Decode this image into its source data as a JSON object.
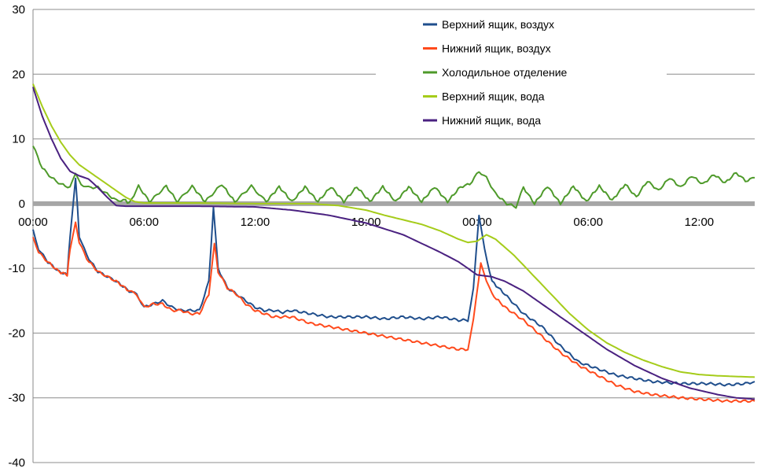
{
  "chart_data": {
    "type": "line",
    "title": "",
    "xlabel": "",
    "ylabel": "",
    "ylim": [
      -40,
      30
    ],
    "y_ticks": [
      30,
      20,
      10,
      0,
      -10,
      -20,
      -30,
      -40
    ],
    "x_unit": "hours since start",
    "xlim": [
      0,
      39
    ],
    "x_ticks": [
      {
        "x": 0,
        "label": "00:00"
      },
      {
        "x": 6,
        "label": "06:00"
      },
      {
        "x": 12,
        "label": "12:00"
      },
      {
        "x": 18,
        "label": "18:00"
      },
      {
        "x": 24,
        "label": "00:00"
      },
      {
        "x": 30,
        "label": "06:00"
      },
      {
        "x": 36,
        "label": "12:00"
      }
    ],
    "grid": "horizontal",
    "legend_position": "top-right",
    "series": [
      {
        "name": "Верхний ящик, воздух",
        "color": "#1f4e8c",
        "points": [
          [
            0,
            -4
          ],
          [
            0.3,
            -7
          ],
          [
            0.8,
            -9
          ],
          [
            1.4,
            -10.5
          ],
          [
            1.85,
            -11
          ],
          [
            2.0,
            -5
          ],
          [
            2.3,
            4
          ],
          [
            2.5,
            -5
          ],
          [
            2.9,
            -8
          ],
          [
            3.5,
            -10.5
          ],
          [
            4.5,
            -12
          ],
          [
            5.2,
            -13.5
          ],
          [
            5.6,
            -14
          ],
          [
            6.0,
            -16
          ],
          [
            6.5,
            -15.5
          ],
          [
            7.0,
            -15
          ],
          [
            7.5,
            -16
          ],
          [
            8.0,
            -16.5
          ],
          [
            8.5,
            -16.5
          ],
          [
            9.0,
            -16.5
          ],
          [
            9.5,
            -12
          ],
          [
            9.75,
            -0.5
          ],
          [
            10.0,
            -10
          ],
          [
            10.5,
            -13
          ],
          [
            11.0,
            -14
          ],
          [
            11.5,
            -15
          ],
          [
            12.0,
            -16
          ],
          [
            12.5,
            -16.5
          ],
          [
            13.0,
            -16.5
          ],
          [
            13.5,
            -16.8
          ],
          [
            14.0,
            -16.5
          ],
          [
            15.0,
            -17
          ],
          [
            16.0,
            -17.5
          ],
          [
            17.0,
            -17.5
          ],
          [
            18.0,
            -17.5
          ],
          [
            19.0,
            -17.8
          ],
          [
            20.0,
            -17.5
          ],
          [
            21.0,
            -17.8
          ],
          [
            22.0,
            -17.5
          ],
          [
            23.0,
            -18
          ],
          [
            23.5,
            -18
          ],
          [
            23.8,
            -13
          ],
          [
            24.1,
            -2
          ],
          [
            24.4,
            -7
          ],
          [
            24.8,
            -12
          ],
          [
            25.5,
            -14
          ],
          [
            26.5,
            -17
          ],
          [
            27.5,
            -19
          ],
          [
            28.5,
            -22
          ],
          [
            29.5,
            -24.5
          ],
          [
            30.5,
            -25.5
          ],
          [
            31.5,
            -26.5
          ],
          [
            32.5,
            -27
          ],
          [
            33.5,
            -27.5
          ],
          [
            35,
            -27.8
          ],
          [
            36.5,
            -27.8
          ],
          [
            37.5,
            -28
          ],
          [
            38.5,
            -27.8
          ],
          [
            39,
            -27.5
          ]
        ]
      },
      {
        "name": "Нижний ящик, воздух",
        "color": "#ff4a1c",
        "points": [
          [
            0,
            -5
          ],
          [
            0.3,
            -7.5
          ],
          [
            0.8,
            -9
          ],
          [
            1.4,
            -10.5
          ],
          [
            1.85,
            -11
          ],
          [
            2.0,
            -7
          ],
          [
            2.3,
            -3
          ],
          [
            2.5,
            -6
          ],
          [
            2.9,
            -8.5
          ],
          [
            3.5,
            -10.5
          ],
          [
            4.5,
            -12
          ],
          [
            5.2,
            -13.5
          ],
          [
            5.6,
            -14
          ],
          [
            6.0,
            -16
          ],
          [
            6.5,
            -15.5
          ],
          [
            7.0,
            -15.5
          ],
          [
            7.5,
            -16.5
          ],
          [
            8.0,
            -16.5
          ],
          [
            8.5,
            -17
          ],
          [
            9.0,
            -17
          ],
          [
            9.5,
            -14
          ],
          [
            9.8,
            -6
          ],
          [
            10.0,
            -10.5
          ],
          [
            10.5,
            -13
          ],
          [
            11.0,
            -14
          ],
          [
            11.5,
            -15.5
          ],
          [
            12.0,
            -16.5
          ],
          [
            12.5,
            -17
          ],
          [
            13.0,
            -17.5
          ],
          [
            14.0,
            -17.5
          ],
          [
            15.0,
            -18.5
          ],
          [
            16.0,
            -19
          ],
          [
            17.0,
            -19.5
          ],
          [
            18.0,
            -20
          ],
          [
            19.0,
            -20.5
          ],
          [
            20.0,
            -21
          ],
          [
            21.0,
            -21.5
          ],
          [
            22.0,
            -22
          ],
          [
            23.0,
            -22.5
          ],
          [
            23.5,
            -22.5
          ],
          [
            23.8,
            -18
          ],
          [
            24.2,
            -9
          ],
          [
            24.5,
            -12
          ],
          [
            24.8,
            -14
          ],
          [
            25.5,
            -16
          ],
          [
            26.5,
            -18
          ],
          [
            27.5,
            -20.5
          ],
          [
            28.5,
            -23
          ],
          [
            29.5,
            -25
          ],
          [
            30.5,
            -26.5
          ],
          [
            31.5,
            -28
          ],
          [
            32.5,
            -29
          ],
          [
            33.5,
            -29.5
          ],
          [
            35,
            -30
          ],
          [
            36.5,
            -30.3
          ],
          [
            37.5,
            -30.5
          ],
          [
            38.5,
            -30.5
          ],
          [
            39,
            -30.5
          ]
        ]
      },
      {
        "name": "Холодильное отделение",
        "color": "#4e9a2a",
        "points": [
          [
            0,
            9
          ],
          [
            0.5,
            5.5
          ],
          [
            1.0,
            4
          ],
          [
            1.5,
            3
          ],
          [
            2.0,
            2.5
          ],
          [
            2.3,
            4.5
          ],
          [
            2.6,
            3
          ],
          [
            3.0,
            2.5
          ],
          [
            3.5,
            2.5
          ],
          [
            4.0,
            1.5
          ],
          [
            4.5,
            0.5
          ],
          [
            5.0,
            0.5
          ],
          [
            5.2,
            0
          ],
          [
            5.7,
            2.7
          ],
          [
            6.3,
            0.3
          ],
          [
            7.2,
            2.7
          ],
          [
            7.8,
            0.3
          ],
          [
            8.6,
            2.7
          ],
          [
            9.3,
            0.3
          ],
          [
            10.2,
            3
          ],
          [
            10.9,
            0.3
          ],
          [
            11.8,
            2.7
          ],
          [
            12.6,
            0.3
          ],
          [
            13.3,
            2.6
          ],
          [
            14.0,
            0.3
          ],
          [
            14.7,
            2.6
          ],
          [
            15.4,
            0.3
          ],
          [
            16.1,
            2.6
          ],
          [
            16.8,
            0.3
          ],
          [
            17.5,
            2.6
          ],
          [
            18.2,
            0.3
          ],
          [
            18.9,
            2.6
          ],
          [
            19.6,
            0.3
          ],
          [
            20.3,
            2.6
          ],
          [
            21.0,
            0.3
          ],
          [
            21.7,
            2.6
          ],
          [
            22.4,
            0.3
          ],
          [
            23.1,
            2.6
          ],
          [
            23.6,
            3
          ],
          [
            24.1,
            5
          ],
          [
            24.5,
            4
          ],
          [
            25.0,
            1.5
          ],
          [
            25.6,
            0
          ],
          [
            26.1,
            -0.5
          ],
          [
            26.5,
            2.5
          ],
          [
            27.1,
            0
          ],
          [
            27.8,
            2.7
          ],
          [
            28.5,
            0
          ],
          [
            29.2,
            2.7
          ],
          [
            29.9,
            0.3
          ],
          [
            30.6,
            2.7
          ],
          [
            31.3,
            0.5
          ],
          [
            32.0,
            3
          ],
          [
            32.6,
            1
          ],
          [
            33.2,
            3.5
          ],
          [
            33.8,
            2
          ],
          [
            34.4,
            4
          ],
          [
            35.0,
            2.5
          ],
          [
            35.6,
            4.3
          ],
          [
            36.2,
            3
          ],
          [
            36.8,
            4.5
          ],
          [
            37.4,
            3.2
          ],
          [
            38.0,
            4.8
          ],
          [
            38.5,
            3.5
          ],
          [
            39,
            4
          ]
        ]
      },
      {
        "name": "Верхний ящик, вода",
        "color": "#a5cc1a",
        "points": [
          [
            0,
            18.5
          ],
          [
            0.5,
            15
          ],
          [
            1.0,
            12
          ],
          [
            1.5,
            9.5
          ],
          [
            2.0,
            7.5
          ],
          [
            2.5,
            6
          ],
          [
            3.0,
            5
          ],
          [
            3.5,
            4
          ],
          [
            4.0,
            3
          ],
          [
            4.5,
            2
          ],
          [
            5.0,
            1
          ],
          [
            5.5,
            0.3
          ],
          [
            6.0,
            0.1
          ],
          [
            9.0,
            0.1
          ],
          [
            12.0,
            0
          ],
          [
            15.0,
            0
          ],
          [
            16.5,
            -0.3
          ],
          [
            18.0,
            -1
          ],
          [
            19.0,
            -1.8
          ],
          [
            20.0,
            -2.5
          ],
          [
            21.0,
            -3.2
          ],
          [
            22.0,
            -4.2
          ],
          [
            23.0,
            -5.5
          ],
          [
            23.5,
            -6
          ],
          [
            24.0,
            -5.8
          ],
          [
            24.5,
            -4.8
          ],
          [
            25.0,
            -5.5
          ],
          [
            26.0,
            -8
          ],
          [
            27.0,
            -11
          ],
          [
            28.0,
            -14
          ],
          [
            29.0,
            -17
          ],
          [
            30.0,
            -19.5
          ],
          [
            31.0,
            -21.5
          ],
          [
            32.0,
            -23
          ],
          [
            33.0,
            -24.2
          ],
          [
            34.0,
            -25.2
          ],
          [
            35.0,
            -26
          ],
          [
            36.0,
            -26.4
          ],
          [
            37.0,
            -26.6
          ],
          [
            38.0,
            -26.7
          ],
          [
            39,
            -26.8
          ]
        ]
      },
      {
        "name": "Нижний ящик, вода",
        "color": "#4a2180",
        "points": [
          [
            0,
            18
          ],
          [
            0.5,
            13.5
          ],
          [
            1.0,
            10
          ],
          [
            1.5,
            7
          ],
          [
            2.0,
            5
          ],
          [
            2.5,
            4.3
          ],
          [
            3.0,
            3.8
          ],
          [
            3.5,
            2.5
          ],
          [
            4.0,
            1
          ],
          [
            4.5,
            -0.3
          ],
          [
            5.0,
            -0.4
          ],
          [
            6.0,
            -0.4
          ],
          [
            9.0,
            -0.4
          ],
          [
            12.0,
            -0.5
          ],
          [
            14.0,
            -1
          ],
          [
            16.0,
            -1.8
          ],
          [
            18.0,
            -3
          ],
          [
            20.0,
            -4.8
          ],
          [
            22.0,
            -7.5
          ],
          [
            23.0,
            -9
          ],
          [
            24.0,
            -11
          ],
          [
            24.8,
            -11.3
          ],
          [
            25.5,
            -12
          ],
          [
            26.5,
            -13.5
          ],
          [
            28.0,
            -16.5
          ],
          [
            29.5,
            -19.5
          ],
          [
            31.0,
            -22.5
          ],
          [
            32.5,
            -25
          ],
          [
            34.0,
            -27
          ],
          [
            35.5,
            -28.5
          ],
          [
            37.0,
            -29.5
          ],
          [
            38.0,
            -30
          ],
          [
            39,
            -30.2
          ]
        ]
      }
    ]
  }
}
